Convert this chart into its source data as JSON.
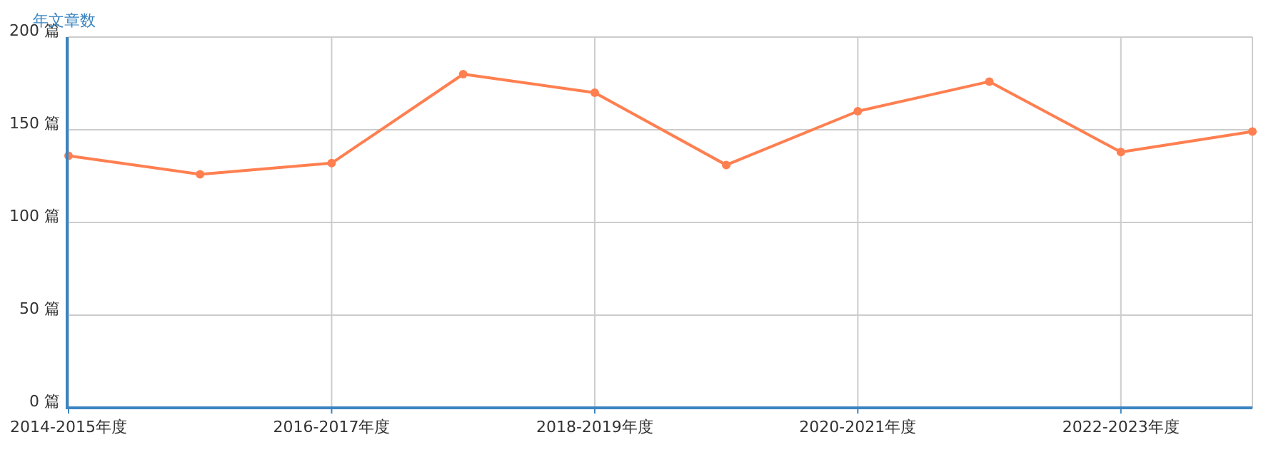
{
  "chart_data": {
    "type": "line",
    "ylabel": "年文章数",
    "categories": [
      "2014-2015年度",
      null,
      "2016-2017年度",
      null,
      "2018-2019年度",
      null,
      "2020-2021年度",
      null,
      "2022-2023年度",
      null
    ],
    "series": [
      {
        "color": "#ff7f50",
        "values": [
          136,
          126,
          132,
          180,
          170,
          131,
          160,
          176,
          138,
          149
        ]
      }
    ],
    "ylim": [
      0,
      200
    ],
    "yticks": [
      {
        "value": 0,
        "label": "0 篇"
      },
      {
        "value": 50,
        "label": "50 篇"
      },
      {
        "value": 100,
        "label": "100 篇"
      },
      {
        "value": 150,
        "label": "150 篇"
      },
      {
        "value": 200,
        "label": "200 篇"
      }
    ],
    "grid": true,
    "marker": "circle",
    "line_style": "solid"
  }
}
